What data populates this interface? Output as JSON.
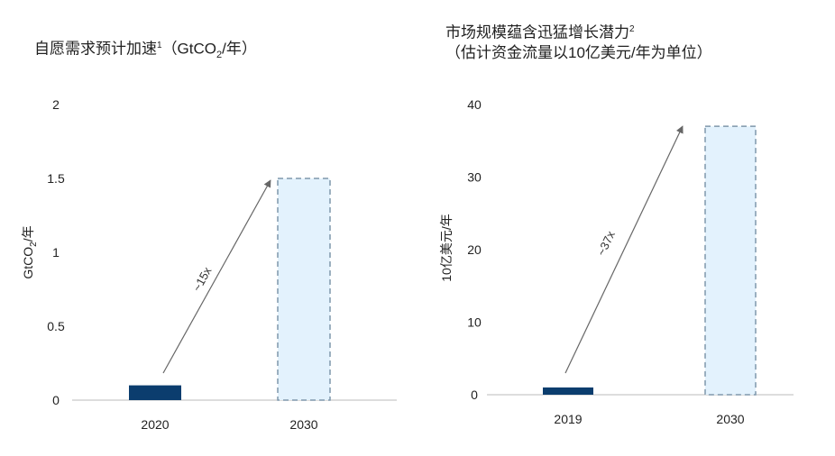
{
  "chart_data": [
    {
      "type": "bar",
      "title_main": "自愿需求预计加速",
      "title_sup": "1",
      "title_unit_pre": "（GtCO",
      "title_unit_sub": "2",
      "title_unit_post": "/年）",
      "ylabel_pre": "GtCO",
      "ylabel_sub": "2",
      "ylabel_post": "/年",
      "categories": [
        "2020",
        "2030"
      ],
      "values": [
        0.1,
        1.5
      ],
      "projected": [
        false,
        true
      ],
      "yticks": [
        "0",
        "0.5",
        "1",
        "1.5",
        "2"
      ],
      "ylim": [
        0,
        2
      ],
      "annotation": "~15x"
    },
    {
      "type": "bar",
      "title_line1": "市场规模蕴含迅猛增长潜力",
      "title_sup": "2",
      "title_line2": "（估计资金流量以10亿美元/年为单位）",
      "ylabel": "10亿美元/年",
      "categories": [
        "2019",
        "2030"
      ],
      "values": [
        1,
        37
      ],
      "projected": [
        false,
        true
      ],
      "yticks": [
        "0",
        "10",
        "20",
        "30",
        "40"
      ],
      "ylim": [
        0,
        40
      ],
      "annotation": "~37x"
    }
  ],
  "colors": {
    "actual": "#0b3d6e",
    "projected_fill": "#e3f2fd",
    "projected_stroke": "#7f97ab",
    "axis": "#bbbbbb",
    "arrow": "#666666"
  }
}
